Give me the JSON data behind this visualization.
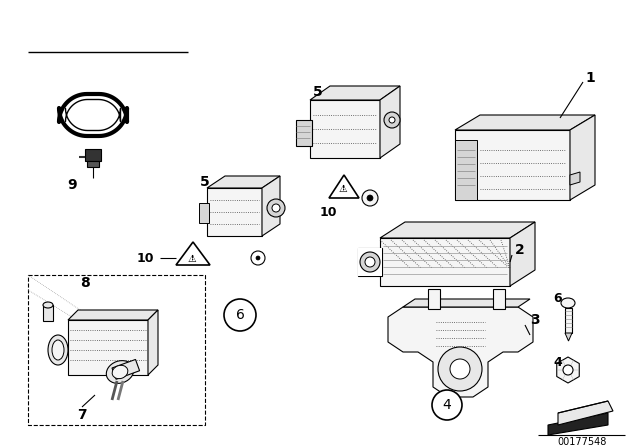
{
  "background_color": "#ffffff",
  "diagram_id": "00177548",
  "fig_width": 6.4,
  "fig_height": 4.48,
  "dpi": 100,
  "line_color": "#000000",
  "detail_color": "#666666",
  "fill_light": "#f5f5f5",
  "fill_mid": "#e8e8e8",
  "fill_dark": "#d5d5d5"
}
